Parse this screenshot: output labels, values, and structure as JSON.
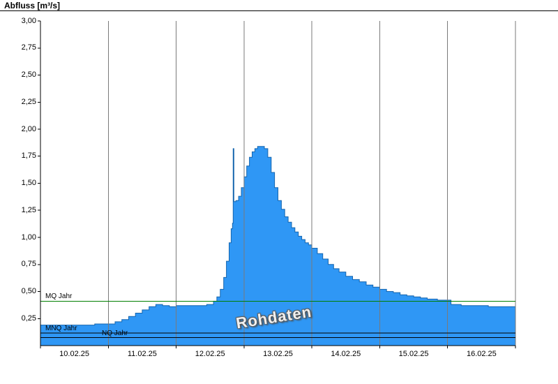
{
  "title": "Abfluss [m³/s]",
  "watermark": "Rohdaten",
  "colors": {
    "area_fill": "#2f97f5",
    "area_stroke": "#1565ae",
    "grid": "#7a7a7a",
    "axis": "#000000",
    "mq_green": "#007f00"
  },
  "chart_data": {
    "type": "area",
    "series_name": "Rohdaten",
    "ylabel": "Abfluss [m³/s]",
    "ylim": [
      0,
      3.0
    ],
    "y_tick_labels": [
      "0,25",
      "0,50",
      "0,75",
      "1,00",
      "1,25",
      "1,50",
      "1,75",
      "2,00",
      "2,25",
      "2,50",
      "2,75",
      "3,00"
    ],
    "x_axis": {
      "labels": [
        "10.02.25",
        "11.02.25",
        "12.02.25",
        "13.02.25",
        "14.02.25",
        "15.02.25",
        "16.02.25"
      ],
      "span_days": 7
    },
    "reference_lines": [
      {
        "label": "MQ Jahr",
        "value": 0.41,
        "color": "#007f00"
      },
      {
        "label": "MNQ Jahr",
        "value": 0.115,
        "color": "#000000"
      },
      {
        "label": "NQ Jahr",
        "value": 0.075,
        "color": "#000000"
      }
    ],
    "points": [
      [
        0,
        0.19
      ],
      [
        0.3,
        0.19
      ],
      [
        0.6,
        0.19
      ],
      [
        0.8,
        0.2
      ],
      [
        1,
        0.2
      ],
      [
        1.1,
        0.22
      ],
      [
        1.2,
        0.24
      ],
      [
        1.3,
        0.27
      ],
      [
        1.4,
        0.3
      ],
      [
        1.5,
        0.33
      ],
      [
        1.6,
        0.36
      ],
      [
        1.7,
        0.38
      ],
      [
        1.8,
        0.37
      ],
      [
        1.9,
        0.36
      ],
      [
        2,
        0.37
      ],
      [
        2.15,
        0.37
      ],
      [
        2.3,
        0.37
      ],
      [
        2.45,
        0.38
      ],
      [
        2.55,
        0.41
      ],
      [
        2.6,
        0.45
      ],
      [
        2.65,
        0.52
      ],
      [
        2.7,
        0.63
      ],
      [
        2.74,
        0.78
      ],
      [
        2.78,
        0.95
      ],
      [
        2.81,
        1.08
      ],
      [
        2.83,
        1.13
      ],
      [
        2.84,
        1.82
      ],
      [
        2.85,
        1.33
      ],
      [
        2.88,
        1.34
      ],
      [
        2.92,
        1.38
      ],
      [
        2.96,
        1.46
      ],
      [
        3,
        1.56
      ],
      [
        3.04,
        1.66
      ],
      [
        3.08,
        1.74
      ],
      [
        3.12,
        1.79
      ],
      [
        3.16,
        1.82
      ],
      [
        3.2,
        1.84
      ],
      [
        3.25,
        1.84
      ],
      [
        3.3,
        1.82
      ],
      [
        3.35,
        1.74
      ],
      [
        3.4,
        1.6
      ],
      [
        3.45,
        1.46
      ],
      [
        3.5,
        1.34
      ],
      [
        3.55,
        1.26
      ],
      [
        3.6,
        1.19
      ],
      [
        3.65,
        1.14
      ],
      [
        3.7,
        1.09
      ],
      [
        3.75,
        1.05
      ],
      [
        3.8,
        1.01
      ],
      [
        3.85,
        0.98
      ],
      [
        3.9,
        0.95
      ],
      [
        3.95,
        0.93
      ],
      [
        4,
        0.9
      ],
      [
        4.08,
        0.85
      ],
      [
        4.16,
        0.8
      ],
      [
        4.24,
        0.75
      ],
      [
        4.32,
        0.71
      ],
      [
        4.4,
        0.68
      ],
      [
        4.5,
        0.64
      ],
      [
        4.6,
        0.61
      ],
      [
        4.7,
        0.59
      ],
      [
        4.8,
        0.56
      ],
      [
        4.9,
        0.54
      ],
      [
        5,
        0.52
      ],
      [
        5.1,
        0.5
      ],
      [
        5.2,
        0.49
      ],
      [
        5.3,
        0.47
      ],
      [
        5.4,
        0.46
      ],
      [
        5.5,
        0.45
      ],
      [
        5.6,
        0.44
      ],
      [
        5.7,
        0.43
      ],
      [
        5.85,
        0.42
      ],
      [
        6,
        0.42
      ],
      [
        6.05,
        0.38
      ],
      [
        6.2,
        0.37
      ],
      [
        6.4,
        0.37
      ],
      [
        6.6,
        0.36
      ],
      [
        6.8,
        0.36
      ],
      [
        7,
        0.37
      ]
    ]
  }
}
